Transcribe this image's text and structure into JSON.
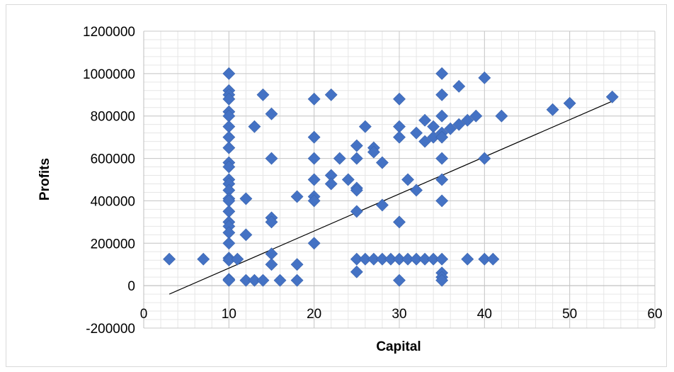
{
  "chart_data": {
    "type": "scatter",
    "title": "",
    "xlabel": "Capital",
    "ylabel": "Profits",
    "xlim": [
      0,
      60
    ],
    "ylim": [
      -200000,
      1200000
    ],
    "x_ticks": [
      0,
      10,
      20,
      30,
      40,
      50,
      60
    ],
    "y_ticks": [
      -200000,
      0,
      200000,
      400000,
      600000,
      800000,
      1000000,
      1200000
    ],
    "grid": true,
    "legend": "none",
    "colors": {
      "marker": "#4472C4",
      "trendline": "#000000",
      "grid": "#d9d9d9",
      "axis": "#bfbfbf"
    },
    "series": [
      {
        "marker": "diamond",
        "points": [
          [
            3,
            125000
          ],
          [
            7,
            125000
          ],
          [
            10,
            1000000
          ],
          [
            10,
            920000
          ],
          [
            10,
            900000
          ],
          [
            10,
            880000
          ],
          [
            10,
            820000
          ],
          [
            10,
            800000
          ],
          [
            10,
            750000
          ],
          [
            10,
            700000
          ],
          [
            10,
            650000
          ],
          [
            10,
            580000
          ],
          [
            10,
            560000
          ],
          [
            10,
            500000
          ],
          [
            10,
            480000
          ],
          [
            10,
            450000
          ],
          [
            10,
            410000
          ],
          [
            10,
            400000
          ],
          [
            10,
            350000
          ],
          [
            10,
            300000
          ],
          [
            10,
            280000
          ],
          [
            10,
            250000
          ],
          [
            10,
            200000
          ],
          [
            10,
            130000
          ],
          [
            10,
            120000
          ],
          [
            10,
            30000
          ],
          [
            10,
            25000
          ],
          [
            11,
            125000
          ],
          [
            12,
            410000
          ],
          [
            12,
            240000
          ],
          [
            12,
            25000
          ],
          [
            13,
            750000
          ],
          [
            13,
            25000
          ],
          [
            14,
            900000
          ],
          [
            14,
            25000
          ],
          [
            15,
            810000
          ],
          [
            15,
            600000
          ],
          [
            15,
            320000
          ],
          [
            15,
            300000
          ],
          [
            15,
            150000
          ],
          [
            15,
            100000
          ],
          [
            16,
            25000
          ],
          [
            18,
            420000
          ],
          [
            18,
            100000
          ],
          [
            18,
            25000
          ],
          [
            20,
            880000
          ],
          [
            20,
            700000
          ],
          [
            20,
            600000
          ],
          [
            20,
            500000
          ],
          [
            20,
            420000
          ],
          [
            20,
            400000
          ],
          [
            20,
            200000
          ],
          [
            22,
            900000
          ],
          [
            22,
            520000
          ],
          [
            22,
            480000
          ],
          [
            23,
            600000
          ],
          [
            24,
            500000
          ],
          [
            25,
            660000
          ],
          [
            25,
            600000
          ],
          [
            25,
            460000
          ],
          [
            25,
            450000
          ],
          [
            25,
            350000
          ],
          [
            25,
            125000
          ],
          [
            25,
            65000
          ],
          [
            26,
            750000
          ],
          [
            26,
            125000
          ],
          [
            27,
            650000
          ],
          [
            27,
            630000
          ],
          [
            27,
            125000
          ],
          [
            28,
            580000
          ],
          [
            28,
            380000
          ],
          [
            28,
            125000
          ],
          [
            29,
            125000
          ],
          [
            30,
            880000
          ],
          [
            30,
            750000
          ],
          [
            30,
            700000
          ],
          [
            30,
            300000
          ],
          [
            30,
            125000
          ],
          [
            30,
            25000
          ],
          [
            31,
            500000
          ],
          [
            31,
            125000
          ],
          [
            32,
            720000
          ],
          [
            32,
            450000
          ],
          [
            32,
            125000
          ],
          [
            33,
            780000
          ],
          [
            33,
            680000
          ],
          [
            33,
            125000
          ],
          [
            34,
            750000
          ],
          [
            34,
            700000
          ],
          [
            34,
            125000
          ],
          [
            35,
            1000000
          ],
          [
            35,
            900000
          ],
          [
            35,
            800000
          ],
          [
            35,
            720000
          ],
          [
            35,
            700000
          ],
          [
            35,
            600000
          ],
          [
            35,
            500000
          ],
          [
            35,
            400000
          ],
          [
            35,
            125000
          ],
          [
            35,
            60000
          ],
          [
            35,
            40000
          ],
          [
            35,
            25000
          ],
          [
            36,
            740000
          ],
          [
            37,
            940000
          ],
          [
            37,
            760000
          ],
          [
            38,
            780000
          ],
          [
            38,
            125000
          ],
          [
            39,
            800000
          ],
          [
            40,
            980000
          ],
          [
            40,
            600000
          ],
          [
            40,
            125000
          ],
          [
            41,
            125000
          ],
          [
            42,
            800000
          ],
          [
            48,
            830000
          ],
          [
            50,
            860000
          ],
          [
            55,
            890000
          ]
        ]
      }
    ],
    "trendline": {
      "type": "linear",
      "x": [
        3,
        55
      ],
      "y": [
        -40000,
        870000
      ]
    }
  }
}
